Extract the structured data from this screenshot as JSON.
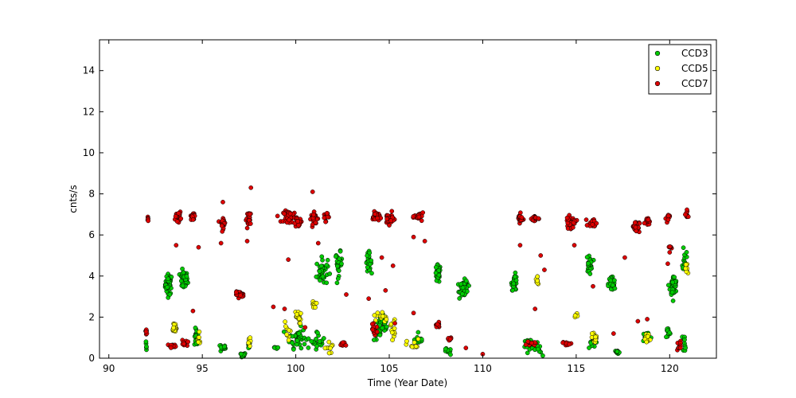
{
  "chart_data": {
    "type": "scatter",
    "title": "",
    "xlabel": "Time (Year Date)",
    "ylabel": "cnts/s",
    "xlim": [
      89.5,
      122.5
    ],
    "ylim": [
      0,
      15.5
    ],
    "xticks": [
      90,
      95,
      100,
      105,
      110,
      115,
      120
    ],
    "xtick_labels": [
      "90",
      "95",
      "100",
      "105",
      "110",
      "115",
      "120"
    ],
    "yticks": [
      0,
      2,
      4,
      6,
      8,
      10,
      12,
      14
    ],
    "ytick_labels": [
      "0",
      "2",
      "4",
      "6",
      "8",
      "10",
      "12",
      "14"
    ],
    "grid": false,
    "legend_position": "top-right",
    "series": [
      {
        "name": "CCD3",
        "color": "#00cc00",
        "clusters": [
          {
            "x": 92.0,
            "y": 0.5,
            "count": 5,
            "xspread": 0.05,
            "yspread": 0.4
          },
          {
            "x": 93.2,
            "y": 3.6,
            "count": 45,
            "xspread": 0.15,
            "yspread": 0.45
          },
          {
            "x": 94.0,
            "y": 3.8,
            "count": 40,
            "xspread": 0.18,
            "yspread": 0.4
          },
          {
            "x": 94.7,
            "y": 1.0,
            "count": 20,
            "xspread": 0.1,
            "yspread": 0.4
          },
          {
            "x": 96.1,
            "y": 0.5,
            "count": 15,
            "xspread": 0.12,
            "yspread": 0.2
          },
          {
            "x": 97.1,
            "y": 0.15,
            "count": 15,
            "xspread": 0.2,
            "yspread": 0.1
          },
          {
            "x": 97.5,
            "y": 0.7,
            "count": 8,
            "xspread": 0.05,
            "yspread": 0.3
          },
          {
            "x": 99.0,
            "y": 0.5,
            "count": 10,
            "xspread": 0.25,
            "yspread": 0.05
          },
          {
            "x": 100.1,
            "y": 1.0,
            "count": 40,
            "xspread": 0.35,
            "yspread": 0.45
          },
          {
            "x": 101.4,
            "y": 4.2,
            "count": 40,
            "xspread": 0.25,
            "yspread": 0.6
          },
          {
            "x": 101.2,
            "y": 0.9,
            "count": 20,
            "xspread": 0.3,
            "yspread": 0.4
          },
          {
            "x": 102.3,
            "y": 4.6,
            "count": 30,
            "xspread": 0.15,
            "yspread": 0.5
          },
          {
            "x": 103.9,
            "y": 4.7,
            "count": 30,
            "xspread": 0.12,
            "yspread": 0.4
          },
          {
            "x": 104.6,
            "y": 1.5,
            "count": 35,
            "xspread": 0.35,
            "yspread": 0.6
          },
          {
            "x": 106.6,
            "y": 0.9,
            "count": 15,
            "xspread": 0.2,
            "yspread": 0.2
          },
          {
            "x": 107.6,
            "y": 4.1,
            "count": 40,
            "xspread": 0.12,
            "yspread": 0.4
          },
          {
            "x": 108.1,
            "y": 0.3,
            "count": 10,
            "xspread": 0.2,
            "yspread": 0.15
          },
          {
            "x": 109.0,
            "y": 3.4,
            "count": 55,
            "xspread": 0.18,
            "yspread": 0.35
          },
          {
            "x": 111.7,
            "y": 3.7,
            "count": 30,
            "xspread": 0.12,
            "yspread": 0.35
          },
          {
            "x": 112.5,
            "y": 0.7,
            "count": 25,
            "xspread": 0.3,
            "yspread": 0.2
          },
          {
            "x": 113.0,
            "y": 0.4,
            "count": 10,
            "xspread": 0.15,
            "yspread": 0.3
          },
          {
            "x": 115.7,
            "y": 4.6,
            "count": 25,
            "xspread": 0.12,
            "yspread": 0.4
          },
          {
            "x": 115.8,
            "y": 0.7,
            "count": 10,
            "xspread": 0.2,
            "yspread": 0.3
          },
          {
            "x": 116.9,
            "y": 3.6,
            "count": 30,
            "xspread": 0.15,
            "yspread": 0.4
          },
          {
            "x": 117.2,
            "y": 0.3,
            "count": 15,
            "xspread": 0.1,
            "yspread": 0.08
          },
          {
            "x": 118.8,
            "y": 1.0,
            "count": 20,
            "xspread": 0.2,
            "yspread": 0.3
          },
          {
            "x": 119.9,
            "y": 1.3,
            "count": 12,
            "xspread": 0.1,
            "yspread": 0.3
          },
          {
            "x": 120.2,
            "y": 3.5,
            "count": 50,
            "xspread": 0.15,
            "yspread": 0.45
          },
          {
            "x": 120.8,
            "y": 4.9,
            "count": 15,
            "xspread": 0.08,
            "yspread": 0.6
          },
          {
            "x": 120.8,
            "y": 0.8,
            "count": 10,
            "xspread": 0.08,
            "yspread": 0.4
          }
        ]
      },
      {
        "name": "CCD5",
        "color": "#ffff00",
        "clusters": [
          {
            "x": 93.5,
            "y": 1.5,
            "count": 20,
            "xspread": 0.1,
            "yspread": 0.25
          },
          {
            "x": 94.8,
            "y": 0.9,
            "count": 10,
            "xspread": 0.1,
            "yspread": 0.3
          },
          {
            "x": 97.5,
            "y": 0.8,
            "count": 8,
            "xspread": 0.06,
            "yspread": 0.2
          },
          {
            "x": 99.5,
            "y": 1.2,
            "count": 10,
            "xspread": 0.15,
            "yspread": 0.6
          },
          {
            "x": 100.1,
            "y": 2.0,
            "count": 15,
            "xspread": 0.15,
            "yspread": 0.3
          },
          {
            "x": 101.0,
            "y": 2.6,
            "count": 10,
            "xspread": 0.08,
            "yspread": 0.15
          },
          {
            "x": 101.8,
            "y": 0.5,
            "count": 10,
            "xspread": 0.2,
            "yspread": 0.3
          },
          {
            "x": 104.5,
            "y": 2.0,
            "count": 12,
            "xspread": 0.3,
            "yspread": 0.3
          },
          {
            "x": 105.2,
            "y": 1.5,
            "count": 12,
            "xspread": 0.1,
            "yspread": 0.5
          },
          {
            "x": 106.3,
            "y": 0.6,
            "count": 10,
            "xspread": 0.3,
            "yspread": 0.3
          },
          {
            "x": 112.9,
            "y": 3.8,
            "count": 10,
            "xspread": 0.1,
            "yspread": 0.3
          },
          {
            "x": 115.0,
            "y": 2.0,
            "count": 6,
            "xspread": 0.08,
            "yspread": 0.15
          },
          {
            "x": 116.0,
            "y": 1.0,
            "count": 15,
            "xspread": 0.12,
            "yspread": 0.25
          },
          {
            "x": 118.8,
            "y": 0.9,
            "count": 12,
            "xspread": 0.15,
            "yspread": 0.25
          },
          {
            "x": 120.9,
            "y": 4.3,
            "count": 10,
            "xspread": 0.06,
            "yspread": 0.3
          }
        ]
      },
      {
        "name": "CCD7",
        "color": "#dd0000",
        "clusters": [
          {
            "x": 92.0,
            "y": 1.3,
            "count": 8,
            "xspread": 0.05,
            "yspread": 0.15
          },
          {
            "x": 92.1,
            "y": 6.8,
            "count": 6,
            "xspread": 0.04,
            "yspread": 0.2
          },
          {
            "x": 93.7,
            "y": 6.9,
            "count": 25,
            "xspread": 0.12,
            "yspread": 0.2
          },
          {
            "x": 93.4,
            "y": 0.6,
            "count": 15,
            "xspread": 0.2,
            "yspread": 0.08
          },
          {
            "x": 94.5,
            "y": 6.9,
            "count": 20,
            "xspread": 0.1,
            "yspread": 0.15
          },
          {
            "x": 94.0,
            "y": 0.7,
            "count": 10,
            "xspread": 0.15,
            "yspread": 0.15
          },
          {
            "x": 96.1,
            "y": 6.6,
            "count": 25,
            "xspread": 0.12,
            "yspread": 0.25
          },
          {
            "x": 97.0,
            "y": 3.1,
            "count": 30,
            "xspread": 0.18,
            "yspread": 0.12
          },
          {
            "x": 97.5,
            "y": 6.8,
            "count": 25,
            "xspread": 0.12,
            "yspread": 0.3
          },
          {
            "x": 99.7,
            "y": 6.9,
            "count": 45,
            "xspread": 0.3,
            "yspread": 0.25
          },
          {
            "x": 100.1,
            "y": 6.6,
            "count": 20,
            "xspread": 0.2,
            "yspread": 0.2
          },
          {
            "x": 101.0,
            "y": 6.8,
            "count": 30,
            "xspread": 0.15,
            "yspread": 0.25
          },
          {
            "x": 101.6,
            "y": 6.9,
            "count": 20,
            "xspread": 0.1,
            "yspread": 0.2
          },
          {
            "x": 102.5,
            "y": 0.7,
            "count": 10,
            "xspread": 0.15,
            "yspread": 0.1
          },
          {
            "x": 104.3,
            "y": 6.9,
            "count": 30,
            "xspread": 0.15,
            "yspread": 0.2
          },
          {
            "x": 105.0,
            "y": 6.8,
            "count": 35,
            "xspread": 0.2,
            "yspread": 0.25
          },
          {
            "x": 104.2,
            "y": 1.4,
            "count": 12,
            "xspread": 0.15,
            "yspread": 0.2
          },
          {
            "x": 106.6,
            "y": 6.9,
            "count": 25,
            "xspread": 0.2,
            "yspread": 0.15
          },
          {
            "x": 107.6,
            "y": 1.6,
            "count": 15,
            "xspread": 0.1,
            "yspread": 0.1
          },
          {
            "x": 108.2,
            "y": 0.9,
            "count": 12,
            "xspread": 0.1,
            "yspread": 0.1
          },
          {
            "x": 112.0,
            "y": 6.8,
            "count": 25,
            "xspread": 0.1,
            "yspread": 0.2
          },
          {
            "x": 112.8,
            "y": 6.8,
            "count": 25,
            "xspread": 0.15,
            "yspread": 0.15
          },
          {
            "x": 112.6,
            "y": 0.7,
            "count": 12,
            "xspread": 0.2,
            "yspread": 0.08
          },
          {
            "x": 114.7,
            "y": 6.6,
            "count": 25,
            "xspread": 0.25,
            "yspread": 0.25
          },
          {
            "x": 115.9,
            "y": 6.6,
            "count": 25,
            "xspread": 0.2,
            "yspread": 0.2
          },
          {
            "x": 114.5,
            "y": 0.7,
            "count": 10,
            "xspread": 0.2,
            "yspread": 0.08
          },
          {
            "x": 118.2,
            "y": 6.4,
            "count": 35,
            "xspread": 0.15,
            "yspread": 0.25
          },
          {
            "x": 118.8,
            "y": 6.7,
            "count": 20,
            "xspread": 0.1,
            "yspread": 0.15
          },
          {
            "x": 119.9,
            "y": 6.8,
            "count": 12,
            "xspread": 0.08,
            "yspread": 0.2
          },
          {
            "x": 120.0,
            "y": 5.4,
            "count": 8,
            "xspread": 0.06,
            "yspread": 0.3
          },
          {
            "x": 120.9,
            "y": 7.0,
            "count": 12,
            "xspread": 0.06,
            "yspread": 0.2
          },
          {
            "x": 120.5,
            "y": 0.6,
            "count": 10,
            "xspread": 0.1,
            "yspread": 0.2
          }
        ],
        "points": [
          [
            97.6,
            8.3
          ],
          [
            100.9,
            8.1
          ],
          [
            96.1,
            7.6
          ],
          [
            93.6,
            5.5
          ],
          [
            94.8,
            5.4
          ],
          [
            96.0,
            5.6
          ],
          [
            97.4,
            5.7
          ],
          [
            99.6,
            4.8
          ],
          [
            101.2,
            5.6
          ],
          [
            102.7,
            3.1
          ],
          [
            104.6,
            4.9
          ],
          [
            105.2,
            4.5
          ],
          [
            106.3,
            5.9
          ],
          [
            106.9,
            5.7
          ],
          [
            104.8,
            3.3
          ],
          [
            112.0,
            5.5
          ],
          [
            113.1,
            5.0
          ],
          [
            113.3,
            4.3
          ],
          [
            112.8,
            2.4
          ],
          [
            114.9,
            5.5
          ],
          [
            115.9,
            3.5
          ],
          [
            117.6,
            4.9
          ],
          [
            118.8,
            1.9
          ],
          [
            119.9,
            4.6
          ],
          [
            98.8,
            2.5
          ],
          [
            99.4,
            2.4
          ],
          [
            103.9,
            2.9
          ],
          [
            94.5,
            2.3
          ],
          [
            106.3,
            2.2
          ],
          [
            105.3,
            1.7
          ],
          [
            109.1,
            0.5
          ],
          [
            110.0,
            0.2
          ],
          [
            100.5,
            1.5
          ],
          [
            117.0,
            1.2
          ],
          [
            118.3,
            1.8
          ]
        ]
      }
    ]
  }
}
